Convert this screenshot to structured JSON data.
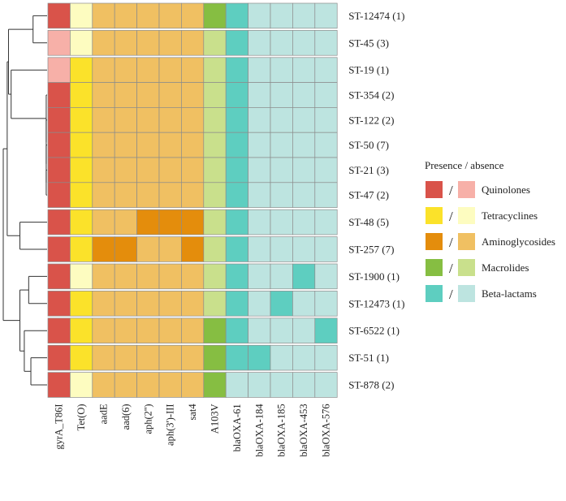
{
  "chart_data": {
    "type": "heatmap",
    "title": "",
    "rows": [
      "ST-12474 (1)",
      "ST-45 (3)",
      "ST-19 (1)",
      "ST-354 (2)",
      "ST-122 (2)",
      "ST-50 (7)",
      "ST-21 (3)",
      "ST-47 (2)",
      "ST-48 (5)",
      "ST-257 (7)",
      "ST-1900 (1)",
      "ST-12473 (1)",
      "ST-6522 (1)",
      "ST-51 (1)",
      "ST-878 (2)"
    ],
    "columns": [
      "gyrA_T86I",
      "Tet(O)",
      "aadE",
      "aad(6)",
      "aph(2'')",
      "aph(3')-III",
      "sat4",
      "A103V",
      "blaOXA-61",
      "blaOXA-184",
      "blaOXA-185",
      "blaOXA-453",
      "blaOXA-576"
    ],
    "column_classes": [
      "Quinolones",
      "Tetracyclines",
      "Aminoglycosides",
      "Aminoglycosides",
      "Aminoglycosides",
      "Aminoglycosides",
      "Aminoglycosides",
      "Macrolides",
      "Beta-lactams",
      "Beta-lactams",
      "Beta-lactams",
      "Beta-lactams",
      "Beta-lactams"
    ],
    "values": [
      [
        1,
        0,
        0,
        0,
        0,
        0,
        0,
        1,
        1,
        0,
        0,
        0,
        0
      ],
      [
        0,
        0,
        0,
        0,
        0,
        0,
        0,
        0,
        1,
        0,
        0,
        0,
        0
      ],
      [
        0,
        1,
        0,
        0,
        0,
        0,
        0,
        0,
        1,
        0,
        0,
        0,
        0
      ],
      [
        1,
        1,
        0,
        0,
        0,
        0,
        0,
        0,
        1,
        0,
        0,
        0,
        0
      ],
      [
        1,
        1,
        0,
        0,
        0,
        0,
        0,
        0,
        1,
        0,
        0,
        0,
        0
      ],
      [
        1,
        1,
        0,
        0,
        0,
        0,
        0,
        0,
        1,
        0,
        0,
        0,
        0
      ],
      [
        1,
        1,
        0,
        0,
        0,
        0,
        0,
        0,
        1,
        0,
        0,
        0,
        0
      ],
      [
        1,
        1,
        0,
        0,
        0,
        0,
        0,
        0,
        1,
        0,
        0,
        0,
        0
      ],
      [
        1,
        1,
        0,
        0,
        1,
        1,
        1,
        0,
        1,
        0,
        0,
        0,
        0
      ],
      [
        1,
        1,
        1,
        1,
        0,
        0,
        1,
        0,
        1,
        0,
        0,
        0,
        0
      ],
      [
        1,
        0,
        0,
        0,
        0,
        0,
        0,
        0,
        1,
        0,
        0,
        1,
        0
      ],
      [
        1,
        1,
        0,
        0,
        0,
        0,
        0,
        0,
        1,
        0,
        1,
        0,
        0
      ],
      [
        1,
        1,
        0,
        0,
        0,
        0,
        0,
        1,
        1,
        0,
        0,
        0,
        1
      ],
      [
        1,
        1,
        0,
        0,
        0,
        0,
        0,
        1,
        1,
        1,
        0,
        0,
        0
      ],
      [
        1,
        0,
        0,
        0,
        0,
        0,
        0,
        1,
        0,
        0,
        0,
        0,
        0
      ]
    ],
    "row_breaks_after": [
      0,
      1,
      7,
      8,
      9,
      10,
      11,
      12,
      13
    ],
    "legend": {
      "title": "Presence / absence",
      "position": "right",
      "separator": "/",
      "entries": [
        {
          "label": "Quinolones",
          "present": "#d9534a",
          "absent": "#f7b0a8"
        },
        {
          "label": "Tetracyclines",
          "present": "#fbe22a",
          "absent": "#fdfcc0"
        },
        {
          "label": "Aminoglycosides",
          "present": "#e48d0c",
          "absent": "#f0c062"
        },
        {
          "label": "Macrolides",
          "present": "#86be42",
          "absent": "#c9e08c"
        },
        {
          "label": "Beta-lactams",
          "present": "#5ecec0",
          "absent": "#bde4e0"
        }
      ]
    },
    "dendrogram": "hierarchical clustering of sequence types (left)"
  }
}
